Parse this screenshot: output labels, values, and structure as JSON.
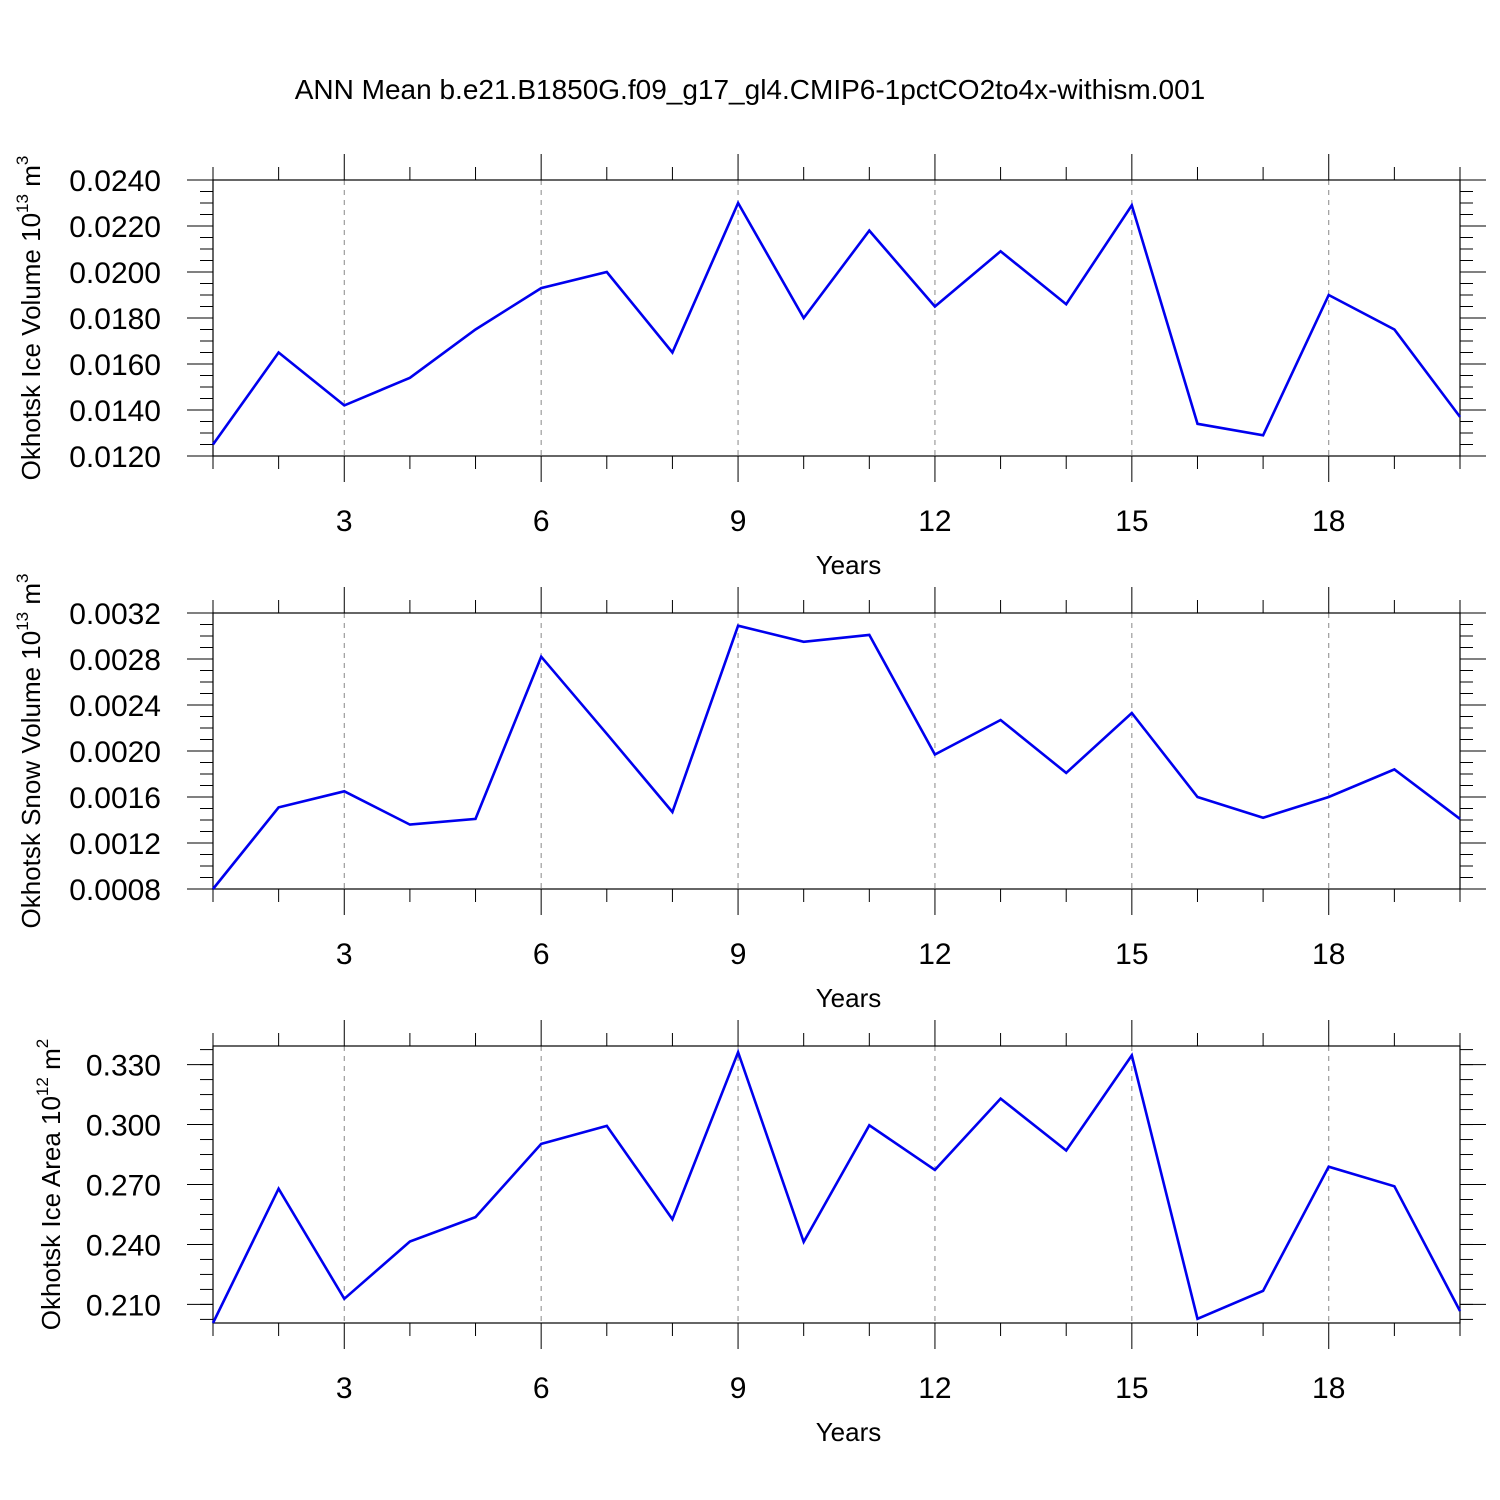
{
  "title": "ANN Mean b.e21.B1850G.f09_g17_gl4.CMIP6-1pctCO2to4x-withism.001",
  "line_color": "#0000ee",
  "chart_data": [
    {
      "type": "line",
      "ylabel": "Okhotsk Ice Volume 10",
      "ylabel_exp": "13",
      "ylabel_unit": " m",
      "ylabel_unit_exp": "3",
      "xlabel": "Years",
      "xlim": [
        1,
        20
      ],
      "ylim": [
        0.012,
        0.024
      ],
      "xticks": [
        3,
        6,
        9,
        12,
        15,
        18
      ],
      "yticks": [
        "0.0120",
        "0.0140",
        "0.0160",
        "0.0180",
        "0.0200",
        "0.0220",
        "0.0240"
      ],
      "grid": "vertical dashed at major x ticks",
      "x": [
        1,
        2,
        3,
        4,
        5,
        6,
        7,
        8,
        9,
        10,
        11,
        12,
        13,
        14,
        15,
        16,
        17,
        18,
        19,
        20
      ],
      "y": [
        0.0125,
        0.0165,
        0.0142,
        0.0154,
        0.0175,
        0.0193,
        0.02,
        0.0165,
        0.023,
        0.018,
        0.0218,
        0.0185,
        0.0209,
        0.0186,
        0.0229,
        0.0134,
        0.0129,
        0.019,
        0.0175,
        0.0137
      ]
    },
    {
      "type": "line",
      "ylabel": "Okhotsk Snow Volume 10",
      "ylabel_exp": "13",
      "ylabel_unit": " m",
      "ylabel_unit_exp": "3",
      "xlabel": "Years",
      "xlim": [
        1,
        20
      ],
      "ylim": [
        0.0008,
        0.0032
      ],
      "xticks": [
        3,
        6,
        9,
        12,
        15,
        18
      ],
      "yticks": [
        "0.0008",
        "0.0012",
        "0.0016",
        "0.0020",
        "0.0024",
        "0.0028",
        "0.0032"
      ],
      "grid": "vertical dashed at major x ticks",
      "x": [
        1,
        2,
        3,
        4,
        5,
        6,
        7,
        8,
        9,
        10,
        11,
        12,
        13,
        14,
        15,
        16,
        17,
        18,
        19,
        20
      ],
      "y": [
        0.0008,
        0.00151,
        0.00165,
        0.00136,
        0.00141,
        0.00282,
        0.00215,
        0.00147,
        0.00309,
        0.00295,
        0.00301,
        0.00197,
        0.00227,
        0.00181,
        0.00233,
        0.0016,
        0.00142,
        0.0016,
        0.00184,
        0.00141
      ]
    },
    {
      "type": "line",
      "ylabel": "Okhotsk Ice Area 10",
      "ylabel_exp": "12",
      "ylabel_unit": " m",
      "ylabel_unit_exp": "2",
      "xlabel": "Years",
      "xlim": [
        1,
        20
      ],
      "ylim": [
        0.2007,
        0.3393
      ],
      "xticks": [
        3,
        6,
        9,
        12,
        15,
        18
      ],
      "yticks": [
        "0.210",
        "0.240",
        "0.270",
        "0.300",
        "0.330"
      ],
      "grid": "vertical dashed at major x ticks",
      "x": [
        1,
        2,
        3,
        4,
        5,
        6,
        7,
        8,
        9,
        10,
        11,
        12,
        13,
        14,
        15,
        16,
        17,
        18,
        19,
        20
      ],
      "y": [
        0.2007,
        0.2679,
        0.2128,
        0.2415,
        0.2537,
        0.2903,
        0.2993,
        0.2526,
        0.3362,
        0.2413,
        0.2996,
        0.2773,
        0.313,
        0.287,
        0.3346,
        0.2028,
        0.2168,
        0.2789,
        0.2691,
        0.2067
      ]
    }
  ]
}
